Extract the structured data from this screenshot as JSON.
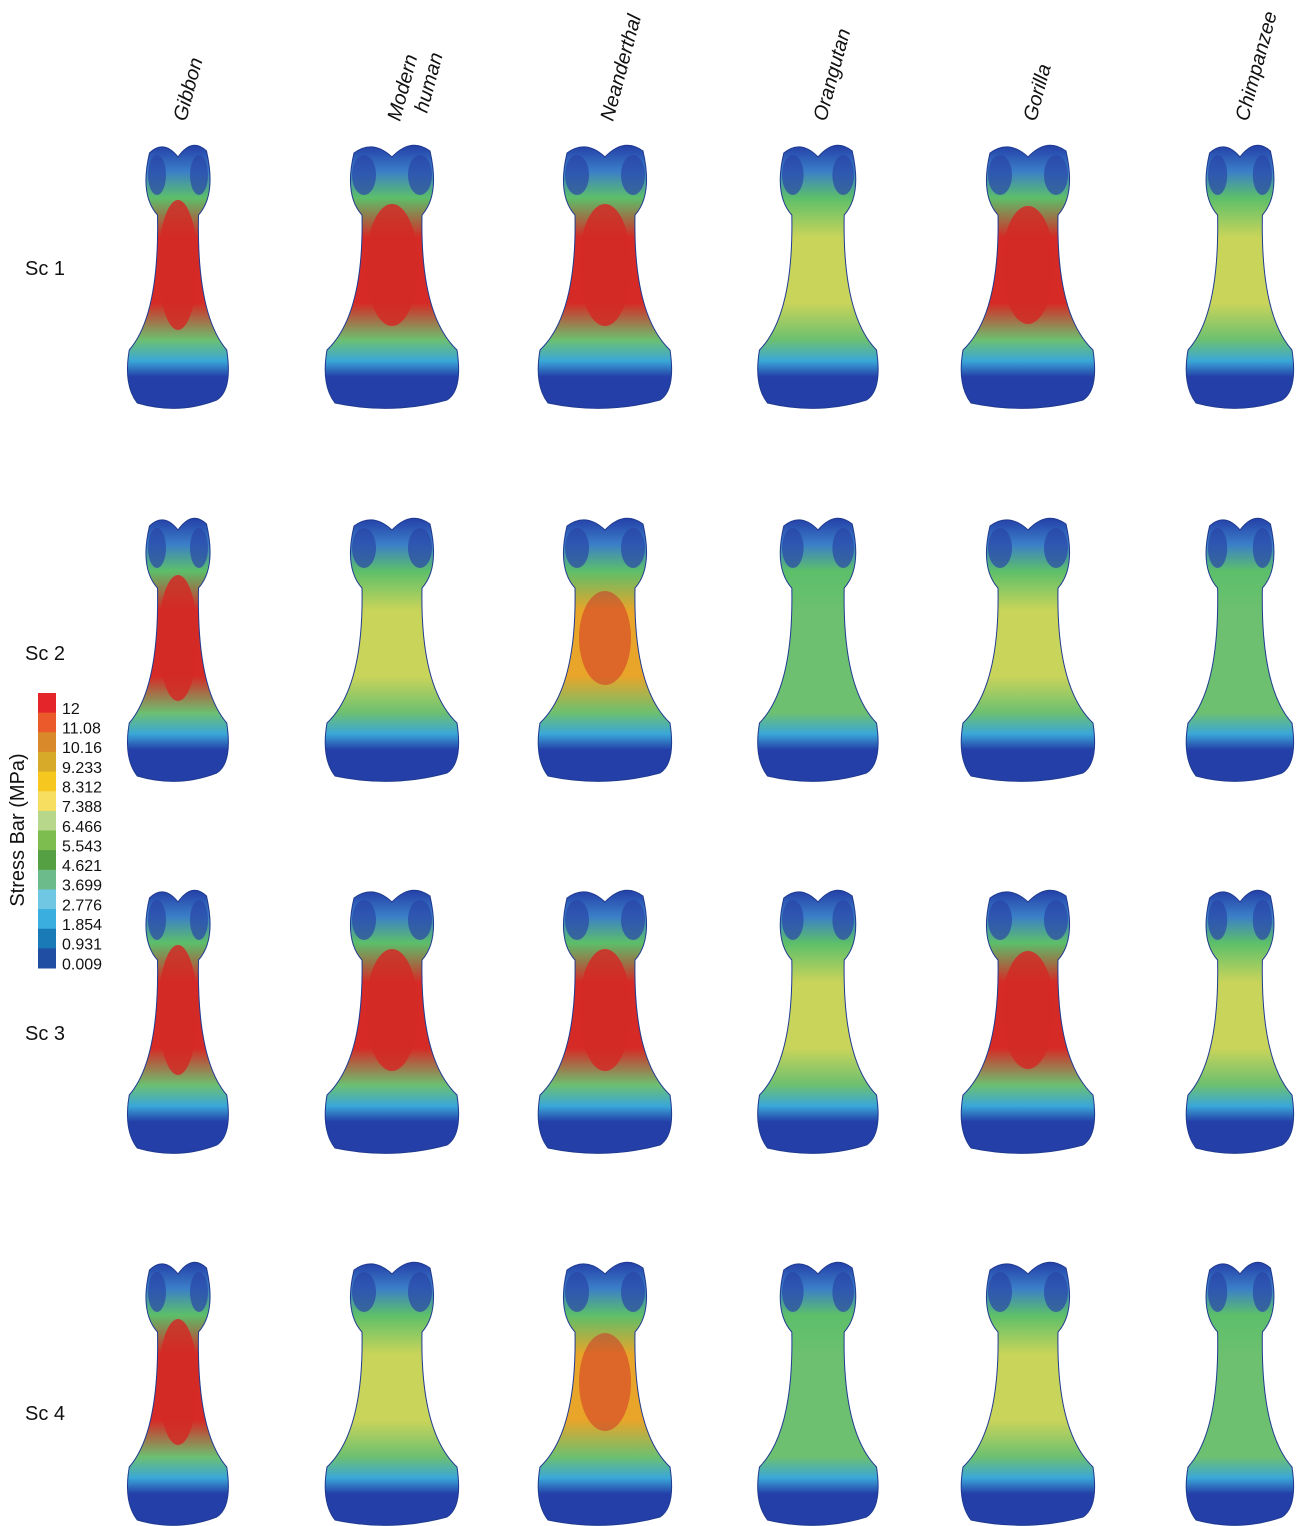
{
  "columns": [
    "Gibbon",
    "Modern\nhuman",
    "Neanderthal",
    "Orangutan",
    "Gorilla",
    "Chimpanzee"
  ],
  "rows": [
    "Sc 1",
    "Sc 2",
    "Sc 3",
    "Sc 4"
  ],
  "colorbar": {
    "title": "Stress Bar (MPa)",
    "labels": [
      "12",
      "11.08",
      "10.16",
      "9.233",
      "8.312",
      "7.388",
      "6.466",
      "5.543",
      "4.621",
      "3.699",
      "2.776",
      "1.854",
      "0.931",
      "0.009"
    ],
    "colors": [
      "#e4262a",
      "#ea5a2a",
      "#d9892a",
      "#d7aa2a",
      "#f6c71e",
      "#f7dd60",
      "#b7d88a",
      "#7dbd4f",
      "#55a043",
      "#6cbb8a",
      "#6fc7e3",
      "#3aaede",
      "#1a7ab8",
      "#1f4ea3"
    ]
  }
}
